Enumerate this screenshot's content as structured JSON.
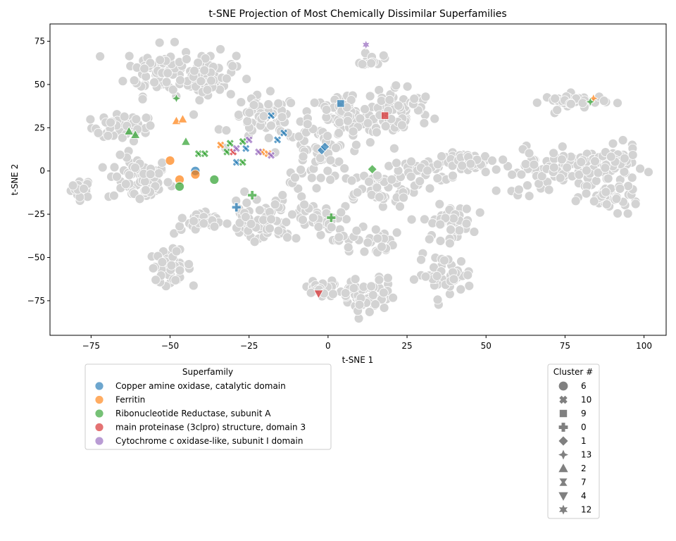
{
  "chart_data": {
    "type": "scatter",
    "title": "t-SNE Projection of Most Chemically Dissimilar Superfamilies",
    "xlabel": "t-SNE 1",
    "ylabel": "t-SNE 2",
    "xlim": [
      -88,
      107
    ],
    "ylim": [
      -95,
      85
    ],
    "xticks": [
      -75,
      -50,
      -25,
      0,
      25,
      50,
      75,
      100
    ],
    "yticks": [
      -75,
      -50,
      -25,
      0,
      25,
      50,
      75
    ],
    "xtick_labels": [
      "−75",
      "−50",
      "−25",
      "0",
      "25",
      "50",
      "75",
      "100"
    ],
    "ytick_labels": [
      "−75",
      "−50",
      "−25",
      "0",
      "25",
      "50",
      "75"
    ],
    "grid": false,
    "background_color": "#d3d3d3",
    "background_clusters": [
      {
        "cx": -78,
        "cy": -10,
        "rx": 3,
        "ry": 5,
        "n": 25
      },
      {
        "cx": -65,
        "cy": 25,
        "rx": 9,
        "ry": 7,
        "n": 45
      },
      {
        "cx": -60,
        "cy": -5,
        "rx": 9,
        "ry": 12,
        "n": 70
      },
      {
        "cx": -53,
        "cy": 58,
        "rx": 10,
        "ry": 13,
        "n": 75
      },
      {
        "cx": -38,
        "cy": 55,
        "rx": 8,
        "ry": 12,
        "n": 60
      },
      {
        "cx": -50,
        "cy": -55,
        "rx": 6,
        "ry": 8,
        "n": 45
      },
      {
        "cx": -40,
        "cy": -30,
        "rx": 8,
        "ry": 6,
        "n": 35
      },
      {
        "cx": -25,
        "cy": -30,
        "rx": 6,
        "ry": 10,
        "n": 40
      },
      {
        "cx": -20,
        "cy": 30,
        "rx": 10,
        "ry": 12,
        "n": 60
      },
      {
        "cx": -15,
        "cy": -25,
        "rx": 9,
        "ry": 14,
        "n": 45
      },
      {
        "cx": -4,
        "cy": 10,
        "rx": 10,
        "ry": 15,
        "n": 60
      },
      {
        "cx": 5,
        "cy": 30,
        "rx": 10,
        "ry": 15,
        "n": 70
      },
      {
        "cx": 22,
        "cy": 35,
        "rx": 10,
        "ry": 14,
        "n": 70
      },
      {
        "cx": 14,
        "cy": 65,
        "rx": 3,
        "ry": 4,
        "n": 15
      },
      {
        "cx": 15,
        "cy": -10,
        "rx": 12,
        "ry": 10,
        "n": 50
      },
      {
        "cx": -2,
        "cy": -30,
        "rx": 6,
        "ry": 10,
        "n": 30
      },
      {
        "cx": 12,
        "cy": -40,
        "rx": 8,
        "ry": 8,
        "n": 30
      },
      {
        "cx": 12,
        "cy": -73,
        "rx": 9,
        "ry": 10,
        "n": 60
      },
      {
        "cx": -2,
        "cy": -68,
        "rx": 6,
        "ry": 5,
        "n": 25
      },
      {
        "cx": 30,
        "cy": 0,
        "rx": 8,
        "ry": 7,
        "n": 35
      },
      {
        "cx": 38,
        "cy": -30,
        "rx": 7,
        "ry": 9,
        "n": 50
      },
      {
        "cx": 37,
        "cy": -60,
        "rx": 8,
        "ry": 10,
        "n": 45
      },
      {
        "cx": 47,
        "cy": 5,
        "rx": 10,
        "ry": 5,
        "n": 45
      },
      {
        "cx": 65,
        "cy": 0,
        "rx": 10,
        "ry": 12,
        "n": 40
      },
      {
        "cx": 78,
        "cy": 40,
        "rx": 9,
        "ry": 4,
        "n": 40
      },
      {
        "cx": 82,
        "cy": 3,
        "rx": 13,
        "ry": 9,
        "n": 70
      },
      {
        "cx": 90,
        "cy": -15,
        "rx": 8,
        "ry": 7,
        "n": 45
      },
      {
        "cx": 90,
        "cy": 5,
        "rx": 7,
        "ry": 8,
        "n": 40
      }
    ],
    "series": [
      {
        "name": "Copper amine oxidase, catalytic domain",
        "color": "#1f77b4",
        "points": [
          {
            "x": -42,
            "y": 0,
            "cluster": "6"
          },
          {
            "x": -18,
            "y": 32,
            "cluster": "10"
          },
          {
            "x": -14,
            "y": 22,
            "cluster": "10"
          },
          {
            "x": -16,
            "y": 18,
            "cluster": "10"
          },
          {
            "x": -29,
            "y": 5,
            "cluster": "10"
          },
          {
            "x": -26,
            "y": 13,
            "cluster": "10"
          },
          {
            "x": 4,
            "y": 39,
            "cluster": "9"
          },
          {
            "x": -29,
            "y": -21,
            "cluster": "0"
          },
          {
            "x": -2,
            "y": 12,
            "cluster": "1"
          },
          {
            "x": -1,
            "y": 14,
            "cluster": "1"
          }
        ]
      },
      {
        "name": "Ferritin",
        "color": "#ff7f0e",
        "points": [
          {
            "x": -50,
            "y": 6,
            "cluster": "6"
          },
          {
            "x": -47,
            "y": -5,
            "cluster": "6"
          },
          {
            "x": -42,
            "y": -2,
            "cluster": "6"
          },
          {
            "x": -34,
            "y": 15,
            "cluster": "10"
          },
          {
            "x": -21,
            "y": 11,
            "cluster": "10"
          },
          {
            "x": -19,
            "y": 10,
            "cluster": "10"
          },
          {
            "x": -48,
            "y": 29,
            "cluster": "2"
          },
          {
            "x": -46,
            "y": 30,
            "cluster": "2"
          },
          {
            "x": 84,
            "y": 42,
            "cluster": "13"
          }
        ]
      },
      {
        "name": "Ribonucleotide Reductase, subunit A",
        "color": "#2ca02c",
        "points": [
          {
            "x": -47,
            "y": -9,
            "cluster": "6"
          },
          {
            "x": -36,
            "y": -5,
            "cluster": "6"
          },
          {
            "x": -41,
            "y": 10,
            "cluster": "10"
          },
          {
            "x": -39,
            "y": 10,
            "cluster": "10"
          },
          {
            "x": -32,
            "y": 11,
            "cluster": "10"
          },
          {
            "x": -31,
            "y": 16,
            "cluster": "10"
          },
          {
            "x": -27,
            "y": 5,
            "cluster": "10"
          },
          {
            "x": -27,
            "y": 17,
            "cluster": "10"
          },
          {
            "x": -24,
            "y": -14,
            "cluster": "0"
          },
          {
            "x": 1,
            "y": -27,
            "cluster": "0"
          },
          {
            "x": 14,
            "y": 1,
            "cluster": "1"
          },
          {
            "x": -48,
            "y": 42,
            "cluster": "13"
          },
          {
            "x": 83,
            "y": 40,
            "cluster": "13"
          },
          {
            "x": -63,
            "y": 23,
            "cluster": "2"
          },
          {
            "x": -61,
            "y": 21,
            "cluster": "2"
          },
          {
            "x": -45,
            "y": 17,
            "cluster": "2"
          }
        ]
      },
      {
        "name": "main proteinase (3clpro) structure, domain 3",
        "color": "#d62728",
        "points": [
          {
            "x": -30,
            "y": 11,
            "cluster": "10"
          },
          {
            "x": 18,
            "y": 32,
            "cluster": "9"
          },
          {
            "x": -3,
            "y": -71,
            "cluster": "4"
          }
        ]
      },
      {
        "name": "Cytochrome c oxidase-like, subunit I domain",
        "color": "#9467bd",
        "points": [
          {
            "x": -29,
            "y": 13,
            "cluster": "10"
          },
          {
            "x": -25,
            "y": 18,
            "cluster": "10"
          },
          {
            "x": -22,
            "y": 11,
            "cluster": "10"
          },
          {
            "x": -18,
            "y": 9,
            "cluster": "10"
          },
          {
            "x": 12,
            "y": 73,
            "cluster": "12"
          }
        ]
      }
    ],
    "legend_superfamily": {
      "title": "Superfamily",
      "entries": [
        "Copper amine oxidase, catalytic domain",
        "Ferritin",
        "Ribonucleotide Reductase, subunit A",
        "main proteinase (3clpro) structure, domain 3",
        "Cytochrome c oxidase-like, subunit I domain"
      ]
    },
    "legend_cluster": {
      "title": "Cluster #",
      "entries": [
        {
          "label": "6",
          "marker": "circle"
        },
        {
          "label": "10",
          "marker": "x"
        },
        {
          "label": "9",
          "marker": "square"
        },
        {
          "label": "0",
          "marker": "plus"
        },
        {
          "label": "1",
          "marker": "diamond"
        },
        {
          "label": "13",
          "marker": "star4"
        },
        {
          "label": "2",
          "marker": "triangle-up"
        },
        {
          "label": "7",
          "marker": "hourglass"
        },
        {
          "label": "4",
          "marker": "triangle-down"
        },
        {
          "label": "12",
          "marker": "star6"
        }
      ]
    }
  }
}
